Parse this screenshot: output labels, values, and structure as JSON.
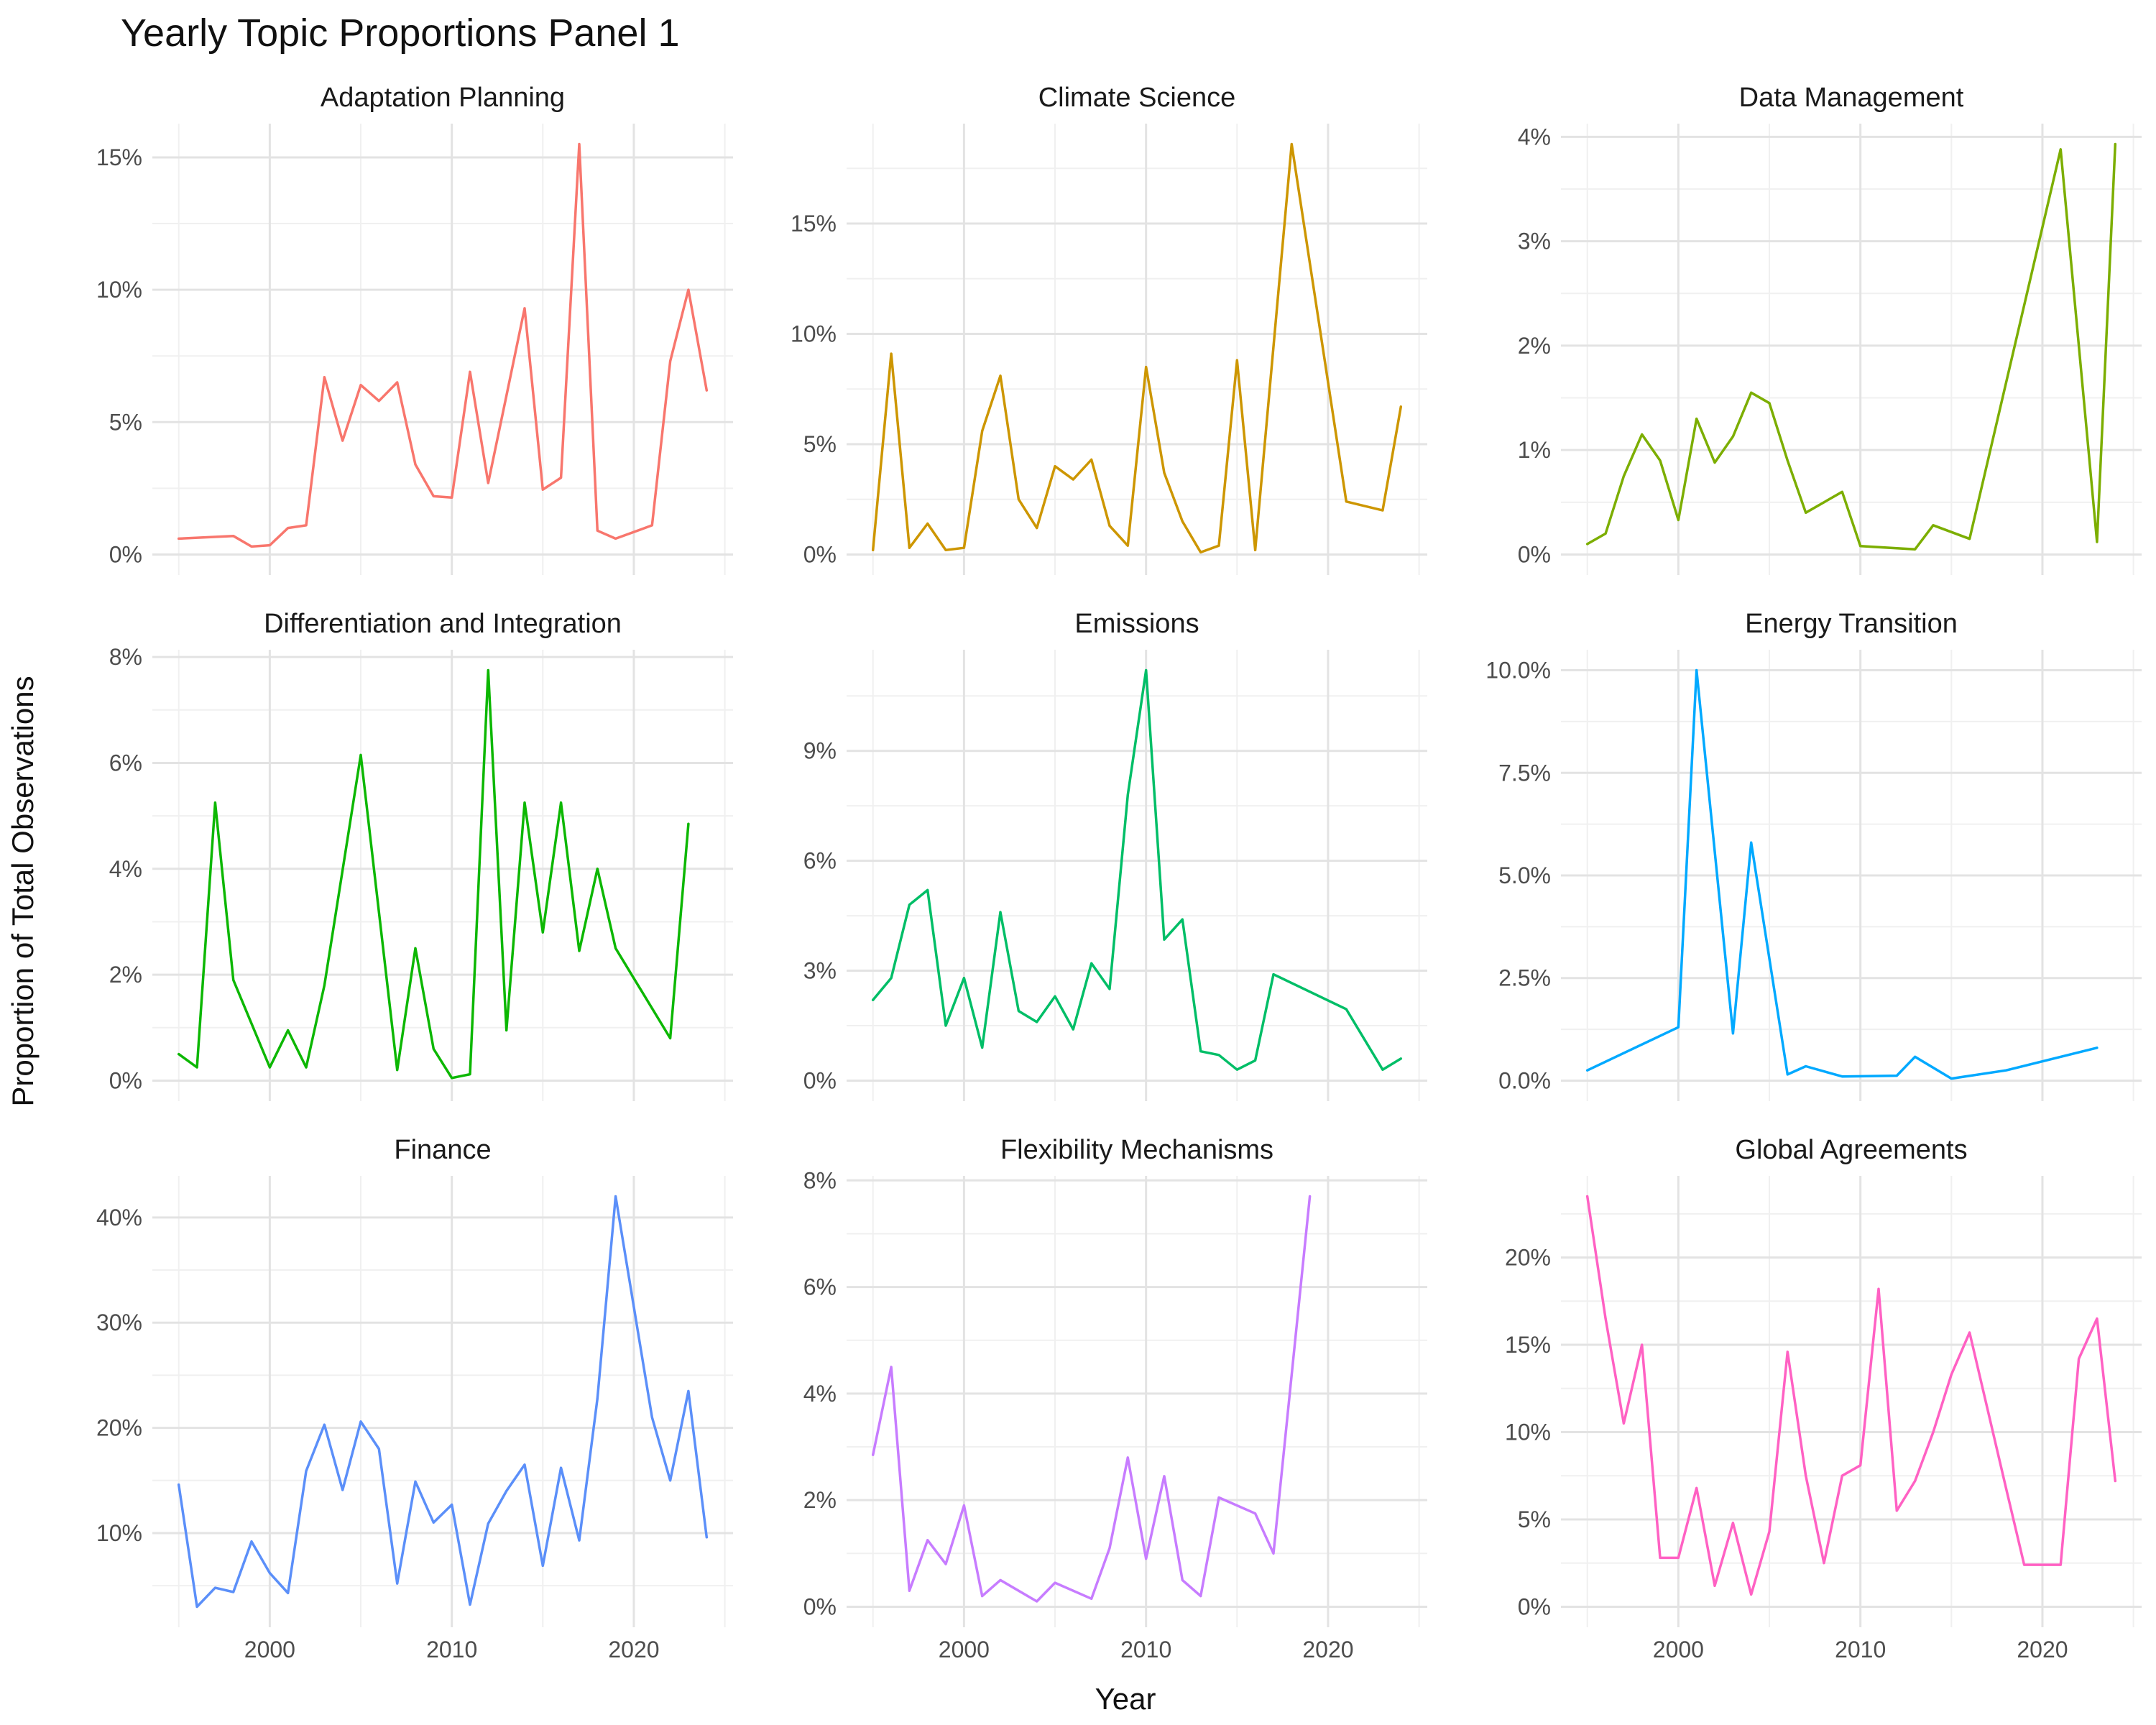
{
  "chart_data": {
    "type": "line",
    "title": "Yearly Topic Proportions Panel 1",
    "xlabel": "Year",
    "ylabel": "Proportion of Total Observations",
    "x_ticks": [
      2000,
      2010,
      2020
    ],
    "grid": true,
    "facets": [
      {
        "name": "Adaptation Planning",
        "color": "#F8766D",
        "ylim": [
          0,
          15.5
        ],
        "yticks": [
          0,
          5,
          10,
          15
        ],
        "ytick_labels": [
          "0%",
          "5%",
          "10%",
          "15%"
        ],
        "x": [
          1995,
          1998,
          1999,
          2000,
          2001,
          2002,
          2003,
          2004,
          2005,
          2006,
          2007,
          2008,
          2009,
          2010,
          2011,
          2012,
          2013,
          2014,
          2015,
          2016,
          2017,
          2018,
          2019,
          2021,
          2022,
          2023,
          2024
        ],
        "values": [
          0.6,
          0.7,
          0.3,
          0.35,
          1.0,
          1.1,
          6.7,
          4.3,
          6.4,
          5.8,
          6.5,
          3.4,
          2.2,
          2.15,
          6.9,
          2.7,
          6.0,
          9.3,
          2.45,
          2.9,
          15.5,
          0.9,
          0.6,
          1.1,
          7.3,
          10.0,
          6.2
        ]
      },
      {
        "name": "Climate Science",
        "color": "#CD9600",
        "ylim": [
          0,
          18.6
        ],
        "yticks": [
          0,
          5,
          10,
          15
        ],
        "ytick_labels": [
          "0%",
          "5%",
          "10%",
          "15%"
        ],
        "x": [
          1995,
          1996,
          1997,
          1998,
          1999,
          2000,
          2001,
          2002,
          2003,
          2004,
          2005,
          2006,
          2007,
          2008,
          2009,
          2010,
          2011,
          2012,
          2013,
          2014,
          2015,
          2016,
          2018,
          2021,
          2023,
          2024
        ],
        "values": [
          0.2,
          9.1,
          0.3,
          1.4,
          0.2,
          0.3,
          5.6,
          8.1,
          2.5,
          1.2,
          4.0,
          3.4,
          4.3,
          1.3,
          0.4,
          8.5,
          3.7,
          1.5,
          0.1,
          0.4,
          8.8,
          0.2,
          18.6,
          2.4,
          2.0,
          6.7
        ]
      },
      {
        "name": "Data Management",
        "color": "#7CAE00",
        "ylim": [
          0,
          3.93
        ],
        "yticks": [
          0,
          1,
          2,
          3,
          4
        ],
        "ytick_labels": [
          "0%",
          "1%",
          "2%",
          "3%",
          "4%"
        ],
        "x": [
          1995,
          1996,
          1997,
          1998,
          1999,
          2000,
          2001,
          2002,
          2003,
          2004,
          2005,
          2006,
          2007,
          2009,
          2010,
          2013,
          2014,
          2016,
          2021,
          2023,
          2024
        ],
        "values": [
          0.1,
          0.2,
          0.75,
          1.15,
          0.9,
          0.33,
          1.3,
          0.88,
          1.13,
          1.55,
          1.45,
          0.9,
          0.4,
          0.6,
          0.08,
          0.05,
          0.28,
          0.15,
          3.88,
          0.12,
          3.93
        ]
      },
      {
        "name": "Differentiation and Integration",
        "color": "#0CB702",
        "ylim": [
          0,
          7.75
        ],
        "yticks": [
          0,
          2,
          4,
          6,
          8
        ],
        "ytick_labels": [
          "0%",
          "2%",
          "4%",
          "6%",
          "8%"
        ],
        "x": [
          1995,
          1996,
          1997,
          1998,
          2000,
          2001,
          2002,
          2003,
          2005,
          2007,
          2008,
          2009,
          2010,
          2011,
          2012,
          2013,
          2014,
          2015,
          2016,
          2017,
          2018,
          2019,
          2022,
          2023
        ],
        "values": [
          0.5,
          0.25,
          5.25,
          1.9,
          0.25,
          0.95,
          0.25,
          1.8,
          6.15,
          0.2,
          2.5,
          0.6,
          0.05,
          0.12,
          7.75,
          0.95,
          5.25,
          2.8,
          5.25,
          2.45,
          4.0,
          2.5,
          0.8,
          4.85
        ]
      },
      {
        "name": "Emissions",
        "color": "#00BE67",
        "ylim": [
          0,
          11.2
        ],
        "yticks": [
          0,
          3,
          6,
          9
        ],
        "ytick_labels": [
          "0%",
          "3%",
          "6%",
          "9%"
        ],
        "x": [
          1995,
          1996,
          1997,
          1998,
          1999,
          2000,
          2001,
          2002,
          2003,
          2004,
          2005,
          2006,
          2007,
          2008,
          2009,
          2010,
          2011,
          2012,
          2013,
          2014,
          2015,
          2016,
          2017,
          2021,
          2023,
          2024
        ],
        "values": [
          2.2,
          2.8,
          4.8,
          5.2,
          1.5,
          2.8,
          0.9,
          4.6,
          1.9,
          1.6,
          2.3,
          1.4,
          3.2,
          2.5,
          7.8,
          11.2,
          3.85,
          4.4,
          0.8,
          0.7,
          0.3,
          0.55,
          2.9,
          1.95,
          0.3,
          0.6
        ]
      },
      {
        "name": "Energy Transition",
        "color": "#00A9FF",
        "ylim": [
          0,
          10.0
        ],
        "yticks": [
          0,
          2.5,
          5,
          7.5,
          10
        ],
        "ytick_labels": [
          "0.0%",
          "2.5%",
          "5.0%",
          "7.5%",
          "10.0%"
        ],
        "x": [
          1995,
          2000,
          2001,
          2003,
          2004,
          2006,
          2007,
          2009,
          2012,
          2013,
          2015,
          2018,
          2023
        ],
        "values": [
          0.25,
          1.3,
          10.0,
          1.15,
          5.8,
          0.15,
          0.35,
          0.1,
          0.12,
          0.58,
          0.05,
          0.25,
          0.8
        ]
      },
      {
        "name": "Finance",
        "color": "#5B8FF9",
        "ylim": [
          3,
          42
        ],
        "yticks": [
          10,
          20,
          30,
          40
        ],
        "ytick_labels": [
          "10%",
          "20%",
          "30%",
          "40%"
        ],
        "x": [
          1995,
          1996,
          1997,
          1998,
          1999,
          2000,
          2001,
          2002,
          2003,
          2004,
          2005,
          2006,
          2007,
          2008,
          2009,
          2010,
          2011,
          2012,
          2013,
          2014,
          2015,
          2016,
          2017,
          2018,
          2019,
          2021,
          2022,
          2023,
          2024
        ],
        "values": [
          14.6,
          3.0,
          4.8,
          4.4,
          9.2,
          6.2,
          4.3,
          15.9,
          20.3,
          14.1,
          20.6,
          18.0,
          5.2,
          14.9,
          11.0,
          12.7,
          3.2,
          10.9,
          14.0,
          16.5,
          6.9,
          16.2,
          9.3,
          22.8,
          42.0,
          21.0,
          15.0,
          23.5,
          9.6
        ]
      },
      {
        "name": "Flexibility Mechanisms",
        "color": "#C77CFF",
        "ylim": [
          0,
          7.7
        ],
        "yticks": [
          0,
          2,
          4,
          6,
          8
        ],
        "ytick_labels": [
          "0%",
          "2%",
          "4%",
          "6%",
          "8%"
        ],
        "x": [
          1995,
          1996,
          1997,
          1998,
          1999,
          2000,
          2001,
          2002,
          2004,
          2005,
          2007,
          2008,
          2009,
          2010,
          2011,
          2012,
          2013,
          2014,
          2016,
          2017,
          2019
        ],
        "values": [
          2.85,
          4.5,
          0.3,
          1.25,
          0.8,
          1.9,
          0.2,
          0.5,
          0.1,
          0.45,
          0.15,
          1.1,
          2.8,
          0.9,
          2.45,
          0.5,
          0.2,
          2.05,
          1.75,
          1.0,
          7.7
        ]
      },
      {
        "name": "Global Agreements",
        "color": "#FF61C3",
        "ylim": [
          0,
          23.5
        ],
        "yticks": [
          0,
          5,
          10,
          15,
          20
        ],
        "ytick_labels": [
          "0%",
          "5%",
          "10%",
          "15%",
          "20%"
        ],
        "x": [
          1995,
          1996,
          1997,
          1998,
          1999,
          2000,
          2001,
          2002,
          2003,
          2004,
          2005,
          2006,
          2007,
          2008,
          2009,
          2010,
          2011,
          2012,
          2013,
          2014,
          2015,
          2016,
          2018,
          2019,
          2021,
          2022,
          2023,
          2024
        ],
        "values": [
          23.5,
          16.5,
          10.5,
          15.0,
          2.8,
          2.8,
          6.8,
          1.2,
          4.8,
          0.7,
          4.3,
          14.6,
          7.5,
          2.5,
          7.5,
          8.1,
          18.2,
          5.5,
          7.2,
          10.0,
          13.3,
          15.7,
          6.8,
          2.4,
          2.4,
          14.2,
          16.5,
          7.2
        ]
      }
    ]
  }
}
